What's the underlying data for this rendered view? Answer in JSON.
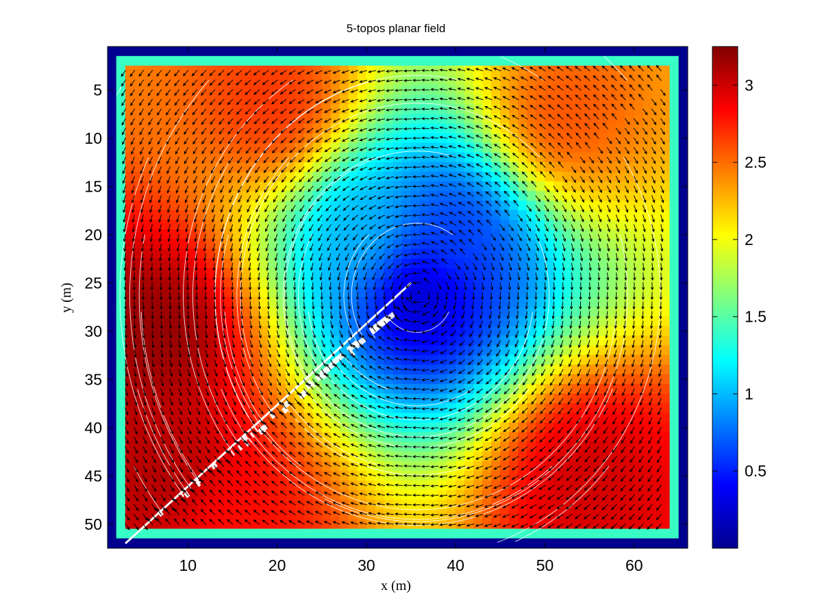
{
  "chart_data": {
    "type": "heatmap",
    "subtype": "vector-field-with-streamlines",
    "title": "5-topos planar field",
    "xlabel": "x (m)",
    "ylabel": "y (m)",
    "xlim": [
      1,
      66
    ],
    "ylim": [
      52.5,
      0.5
    ],
    "y_axis_direction": "top-to-bottom",
    "xticks": [
      10,
      20,
      30,
      40,
      50,
      60
    ],
    "yticks": [
      5,
      10,
      15,
      20,
      25,
      30,
      35,
      40,
      45,
      50
    ],
    "grid_size": [
      65,
      52
    ],
    "colormap": "jet",
    "colorbar": {
      "range": [
        0,
        3.25
      ],
      "ticks": [
        0.5,
        1,
        1.5,
        2,
        2.5,
        3
      ],
      "tick_labels": [
        "0.5",
        "1",
        "1.5",
        "2",
        "2.5",
        "3"
      ],
      "placement": "right"
    },
    "magnitude_peaks": [
      {
        "x": 7,
        "y": 30,
        "value": 3.2
      },
      {
        "x": 8,
        "y": 45,
        "value": 3.1
      },
      {
        "x": 55,
        "y": 45,
        "value": 3.0
      },
      {
        "x": 20,
        "y": 7,
        "value": 2.7
      },
      {
        "x": 52,
        "y": 8,
        "value": 2.6
      },
      {
        "x": 15,
        "y": 50,
        "value": 2.8
      },
      {
        "x": 36,
        "y": 26,
        "value": 0.15
      },
      {
        "x": 30,
        "y": 20,
        "value": 1.0
      },
      {
        "x": 40,
        "y": 20,
        "value": 0.6
      }
    ],
    "border_value": 0.05,
    "arrow_color": "#000000",
    "streamline_color": "#ffffff",
    "separatrix": {
      "from": [
        3,
        52
      ],
      "to": [
        35,
        25
      ]
    }
  }
}
